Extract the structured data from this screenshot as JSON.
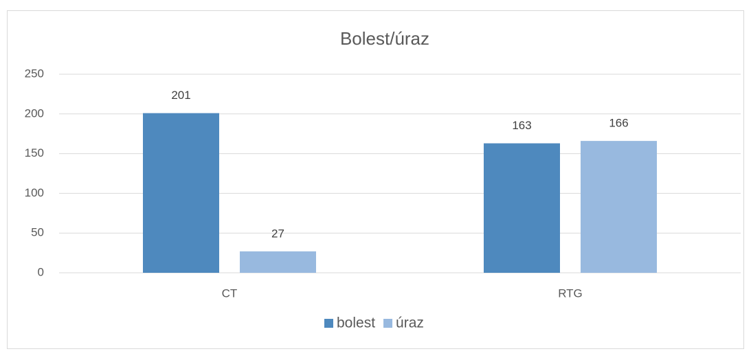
{
  "chart_data": {
    "type": "bar",
    "title": "Bolest/úraz",
    "categories": [
      "CT",
      "RTG"
    ],
    "series": [
      {
        "name": "bolest",
        "color": "#4e89be",
        "values": [
          201,
          163
        ]
      },
      {
        "name": "úraz",
        "color": "#98b9df",
        "values": [
          27,
          166
        ]
      }
    ],
    "ylim": [
      0,
      250
    ],
    "yticks": [
      0,
      50,
      100,
      150,
      200,
      250
    ],
    "grid": true,
    "legend": "bottom"
  }
}
